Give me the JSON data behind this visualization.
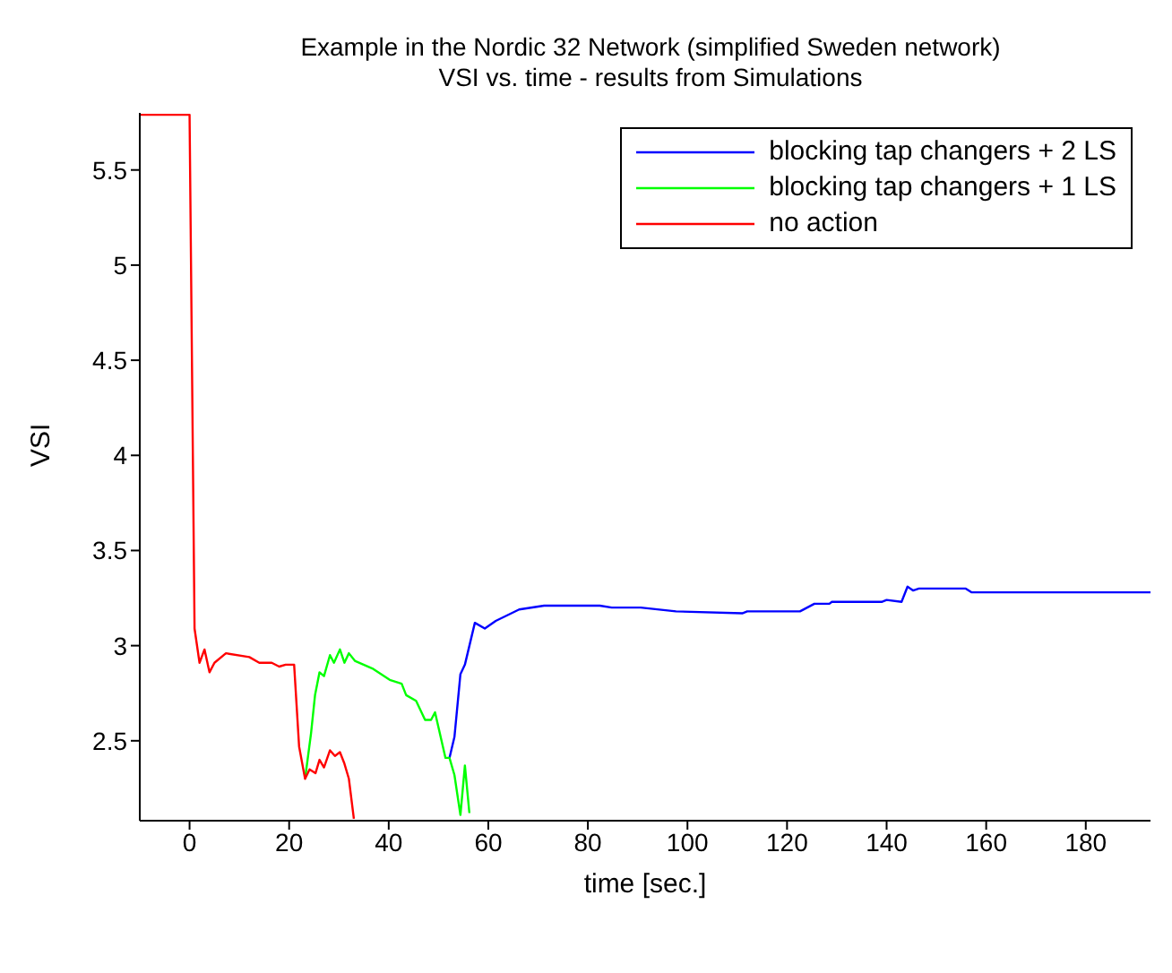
{
  "chart_data": {
    "type": "line",
    "title": "Example in the Nordic 32 Network (simplified Sweden network)",
    "subtitle": "VSI vs. time - results from Simulations",
    "xlabel": "time [sec.]",
    "ylabel": "VSI",
    "xlim": [
      -10,
      193
    ],
    "ylim": [
      2.08,
      5.8
    ],
    "xticks": [
      0,
      20,
      40,
      60,
      80,
      100,
      120,
      140,
      160,
      180
    ],
    "yticks": [
      2.5,
      3,
      3.5,
      4,
      4.5,
      5,
      5.5
    ],
    "grid": false,
    "legend": "top right",
    "marker": "none",
    "line_style": "solid",
    "series": [
      {
        "name": "blocking tap changers + 2 LS",
        "color": "#0000ff",
        "x": [
          52.2,
          53.2,
          54.4,
          55.3,
          57.3,
          59.3,
          61.5,
          66.2,
          71.2,
          82.4,
          84.8,
          90.6,
          97.7,
          111,
          112,
          122.6,
          125.5,
          128.5,
          129,
          139,
          140,
          143,
          144.2,
          145.3,
          146.5,
          155.9,
          157.1,
          193
        ],
        "values": [
          2.41,
          2.52,
          2.85,
          2.9,
          3.12,
          3.09,
          3.13,
          3.19,
          3.21,
          3.21,
          3.2,
          3.2,
          3.18,
          3.17,
          3.18,
          3.18,
          3.22,
          3.22,
          3.23,
          3.23,
          3.24,
          3.23,
          3.31,
          3.29,
          3.3,
          3.3,
          3.28,
          3.28
        ]
      },
      {
        "name": "blocking tap changers + 1 LS",
        "color": "#00ff00",
        "x": [
          23.2,
          24.4,
          25.2,
          26.1,
          27,
          28.2,
          29,
          30.2,
          31.1,
          32,
          33.2,
          36.7,
          40.2,
          42.6,
          43.5,
          45.5,
          47.3,
          48.5,
          49.3,
          51.4,
          52.2,
          53.2,
          54.4,
          55.3,
          56.2
        ],
        "values": [
          2.3,
          2.54,
          2.74,
          2.86,
          2.84,
          2.95,
          2.91,
          2.98,
          2.91,
          2.96,
          2.92,
          2.88,
          2.82,
          2.8,
          2.74,
          2.71,
          2.61,
          2.61,
          2.65,
          2.41,
          2.41,
          2.32,
          2.11,
          2.37,
          2.12
        ]
      },
      {
        "name": "no action",
        "color": "#ff0000",
        "x": [
          -10,
          0,
          1,
          2,
          3,
          4,
          5,
          7.3,
          12,
          14,
          16.5,
          18,
          19.3,
          21,
          22,
          23.2,
          24.1,
          25.3,
          26.1,
          27,
          28.2,
          29.2,
          30.2,
          31.1,
          32,
          33
        ],
        "values": [
          5.79,
          5.79,
          3.09,
          2.91,
          2.98,
          2.86,
          2.91,
          2.96,
          2.94,
          2.91,
          2.91,
          2.89,
          2.9,
          2.9,
          2.47,
          2.3,
          2.35,
          2.33,
          2.4,
          2.36,
          2.45,
          2.42,
          2.44,
          2.38,
          2.3,
          2.09
        ]
      }
    ]
  }
}
